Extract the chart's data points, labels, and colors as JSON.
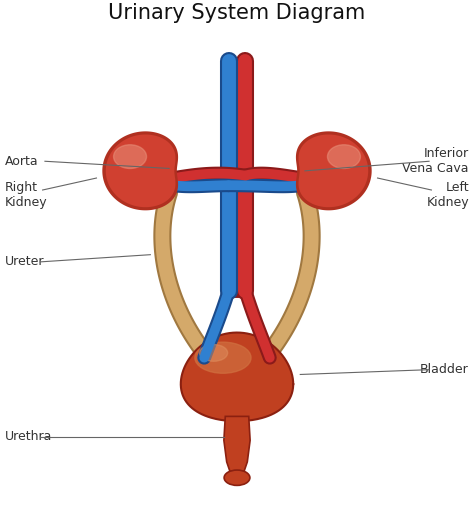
{
  "title": "Urinary System Diagram",
  "title_fontsize": 15,
  "bg_color": "#ffffff",
  "kidney_dark": "#b03020",
  "kidney_mid": "#d04030",
  "kidney_light": "#e07055",
  "kidney_highlight": "#e8907a",
  "aorta_color": "#d03030",
  "aorta_dark": "#8b1a1a",
  "vena_color": "#3080d0",
  "vena_dark": "#1a4a8b",
  "ureter_color": "#d4a96a",
  "ureter_dark": "#a07840",
  "bladder_dark": "#8b2010",
  "bladder_mid": "#c04020",
  "bladder_light": "#d07040",
  "bladder_highlight": "#e09060",
  "label_fontsize": 9,
  "label_color": "#333333",
  "line_color": "#666666",
  "labels": {
    "aorta": "Aorta",
    "right_kidney": "Right\nKidney",
    "left_kidney": "Left\nKidney",
    "inferior_vena_cava": "Inferior\nVena Cava",
    "ureter": "Ureter",
    "bladder": "Bladder",
    "urethra": "Urethra"
  }
}
